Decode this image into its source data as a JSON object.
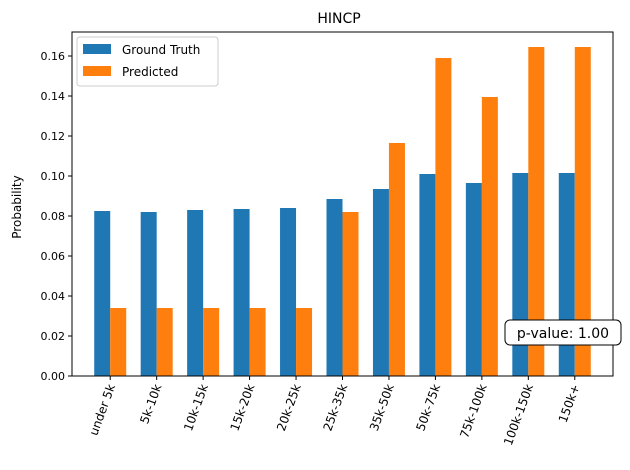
{
  "chart_data": {
    "type": "bar",
    "title": "HINCP",
    "ylabel": "Probability",
    "xlabel": "",
    "ylim": [
      0,
      0.172
    ],
    "yticks": [
      0.0,
      0.02,
      0.04,
      0.06,
      0.08,
      0.1,
      0.12,
      0.14,
      0.16
    ],
    "categories": [
      "under 5k",
      "5k-10k",
      "10k-15k",
      "15k-20k",
      "20k-25k",
      "25k-35k",
      "35k-50k",
      "50k-75k",
      "75k-100k",
      "100k-150k",
      "150k+"
    ],
    "series": [
      {
        "name": "Ground Truth",
        "color": "#1f77b4",
        "values": [
          0.0825,
          0.082,
          0.083,
          0.0835,
          0.084,
          0.0885,
          0.0935,
          0.101,
          0.0965,
          0.1015,
          0.1015
        ]
      },
      {
        "name": "Predicted",
        "color": "#ff7f0e",
        "values": [
          0.034,
          0.034,
          0.034,
          0.034,
          0.034,
          0.082,
          0.1165,
          0.159,
          0.1395,
          0.1645,
          0.1645
        ]
      }
    ],
    "legend_position": "top-left",
    "annotation": "p-value: 1.00",
    "annotation_position": "bottom-right",
    "grid": false
  }
}
